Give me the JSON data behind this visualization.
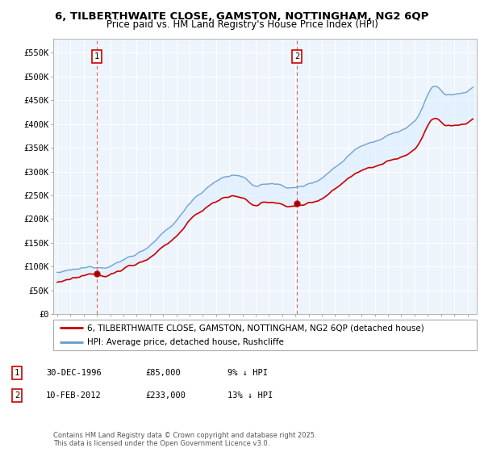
{
  "title1": "6, TILBERTHWAITE CLOSE, GAMSTON, NOTTINGHAM, NG2 6QP",
  "title2": "Price paid vs. HM Land Registry's House Price Index (HPI)",
  "ylim": [
    0,
    580000
  ],
  "yticks": [
    0,
    50000,
    100000,
    150000,
    200000,
    250000,
    300000,
    350000,
    400000,
    450000,
    500000,
    550000
  ],
  "ytick_labels": [
    "£0",
    "£50K",
    "£100K",
    "£150K",
    "£200K",
    "£250K",
    "£300K",
    "£350K",
    "£400K",
    "£450K",
    "£500K",
    "£550K"
  ],
  "sale1_year": 1996.99,
  "sale1_price": 85000,
  "sale2_year": 2012.11,
  "sale2_price": 233000,
  "legend_line1": "6, TILBERTHWAITE CLOSE, GAMSTON, NOTTINGHAM, NG2 6QP (detached house)",
  "legend_line2": "HPI: Average price, detached house, Rushcliffe",
  "table_row1": [
    "1",
    "30-DEC-1996",
    "£85,000",
    "9% ↓ HPI"
  ],
  "table_row2": [
    "2",
    "10-FEB-2012",
    "£233,000",
    "13% ↓ HPI"
  ],
  "footnote": "Contains HM Land Registry data © Crown copyright and database right 2025.\nThis data is licensed under the Open Government Licence v3.0.",
  "line_color_red": "#cc0000",
  "line_color_blue": "#6699cc",
  "fill_color_blue": "#ddeeff",
  "bg_color": "#ffffff",
  "grid_color": "#cccccc",
  "chart_bg": "#eef4fb"
}
